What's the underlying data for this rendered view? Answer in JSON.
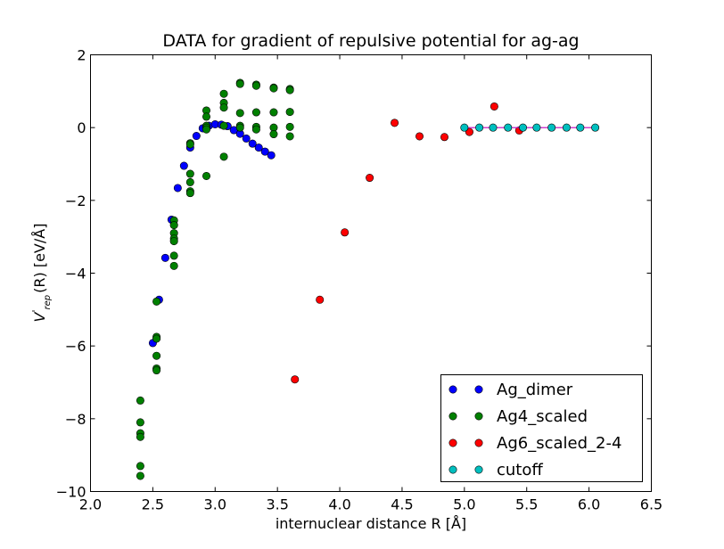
{
  "chart_data": {
    "type": "scatter",
    "title": "DATA for gradient of repulsive potential for ag-ag",
    "xlabel": "internuclear distance R [Å]",
    "ylabel": {
      "prefix": "V",
      "sup": "'",
      "sub": "rep",
      "suffix": "(R) [eV/Å]"
    },
    "xlim": [
      2.0,
      6.5
    ],
    "ylim": [
      -10,
      2
    ],
    "xticks": [
      2.0,
      2.5,
      3.0,
      3.5,
      4.0,
      4.5,
      5.0,
      5.5,
      6.0,
      6.5
    ],
    "yticks": [
      -10,
      -8,
      -6,
      -4,
      -2,
      0,
      2
    ],
    "xtick_labels": [
      "2.0",
      "2.5",
      "3.0",
      "3.5",
      "4.0",
      "4.5",
      "5.0",
      "5.5",
      "6.0",
      "6.5"
    ],
    "ytick_labels": [
      "−10",
      "−8",
      "−6",
      "−4",
      "−2",
      "0",
      "2"
    ],
    "grid": false,
    "legend_position": "lower-right",
    "series": [
      {
        "name": "Ag_dimer",
        "color": "#0000ff",
        "line": false,
        "points": [
          [
            2.5,
            -5.92
          ],
          [
            2.55,
            -4.73
          ],
          [
            2.6,
            -3.58
          ],
          [
            2.65,
            -2.53
          ],
          [
            2.7,
            -1.66
          ],
          [
            2.75,
            -1.05
          ],
          [
            2.8,
            -0.55
          ],
          [
            2.85,
            -0.23
          ],
          [
            2.9,
            -0.02
          ],
          [
            2.95,
            0.05
          ],
          [
            3.0,
            0.09
          ],
          [
            3.05,
            0.08
          ],
          [
            3.1,
            0.04
          ],
          [
            3.15,
            -0.07
          ],
          [
            3.2,
            -0.17
          ],
          [
            3.25,
            -0.3
          ],
          [
            3.3,
            -0.44
          ],
          [
            3.35,
            -0.55
          ],
          [
            3.4,
            -0.66
          ],
          [
            3.45,
            -0.76
          ]
        ]
      },
      {
        "name": "Ag4_scaled",
        "color": "#008000",
        "line": false,
        "points": [
          [
            2.4,
            -7.5
          ],
          [
            2.4,
            -8.1
          ],
          [
            2.4,
            -8.4
          ],
          [
            2.4,
            -8.5
          ],
          [
            2.4,
            -9.3
          ],
          [
            2.4,
            -9.57
          ],
          [
            2.53,
            -4.78
          ],
          [
            2.53,
            -5.75
          ],
          [
            2.53,
            -5.8
          ],
          [
            2.53,
            -6.27
          ],
          [
            2.53,
            -6.62
          ],
          [
            2.53,
            -6.67
          ],
          [
            2.67,
            -2.55
          ],
          [
            2.67,
            -2.68
          ],
          [
            2.67,
            -2.9
          ],
          [
            2.67,
            -3.05
          ],
          [
            2.67,
            -3.12
          ],
          [
            2.67,
            -3.52
          ],
          [
            2.67,
            -3.8
          ],
          [
            2.8,
            -0.43
          ],
          [
            2.8,
            -0.46
          ],
          [
            2.8,
            -1.27
          ],
          [
            2.8,
            -1.5
          ],
          [
            2.8,
            -1.75
          ],
          [
            2.8,
            -1.8
          ],
          [
            2.93,
            0.47
          ],
          [
            2.93,
            0.3
          ],
          [
            2.93,
            0.05
          ],
          [
            2.93,
            0.0
          ],
          [
            2.93,
            -0.05
          ],
          [
            2.93,
            -1.33
          ],
          [
            3.07,
            0.93
          ],
          [
            3.07,
            0.68
          ],
          [
            3.07,
            0.55
          ],
          [
            3.07,
            0.05
          ],
          [
            3.07,
            -0.8
          ],
          [
            3.2,
            1.23
          ],
          [
            3.2,
            1.2
          ],
          [
            3.2,
            0.4
          ],
          [
            3.2,
            0.05
          ],
          [
            3.2,
            0.0
          ],
          [
            3.33,
            1.18
          ],
          [
            3.33,
            1.15
          ],
          [
            3.33,
            0.42
          ],
          [
            3.33,
            0.02
          ],
          [
            3.33,
            -0.05
          ],
          [
            3.47,
            1.1
          ],
          [
            3.47,
            1.08
          ],
          [
            3.47,
            0.42
          ],
          [
            3.47,
            0.0
          ],
          [
            3.47,
            -0.18
          ],
          [
            3.6,
            1.06
          ],
          [
            3.6,
            1.03
          ],
          [
            3.6,
            0.43
          ],
          [
            3.6,
            0.02
          ],
          [
            3.6,
            -0.24
          ]
        ]
      },
      {
        "name": "Ag6_scaled_2-4",
        "color": "#ff0000",
        "line": false,
        "points": [
          [
            3.64,
            -6.92
          ],
          [
            3.84,
            -4.73
          ],
          [
            4.04,
            -2.88
          ],
          [
            4.24,
            -1.38
          ],
          [
            4.44,
            0.13
          ],
          [
            4.64,
            -0.24
          ],
          [
            4.84,
            -0.26
          ],
          [
            5.04,
            -0.12
          ],
          [
            5.24,
            0.58
          ],
          [
            5.44,
            -0.08
          ]
        ]
      },
      {
        "name": "cutoff",
        "color": "#00bfbf",
        "line": true,
        "line_color": "#bf00bf",
        "points": [
          [
            5.0,
            0.0
          ],
          [
            5.12,
            0.0
          ],
          [
            5.23,
            0.0
          ],
          [
            5.35,
            0.0
          ],
          [
            5.47,
            0.0
          ],
          [
            5.58,
            0.0
          ],
          [
            5.7,
            0.0
          ],
          [
            5.82,
            0.0
          ],
          [
            5.93,
            0.0
          ],
          [
            6.05,
            0.0
          ]
        ]
      }
    ]
  }
}
